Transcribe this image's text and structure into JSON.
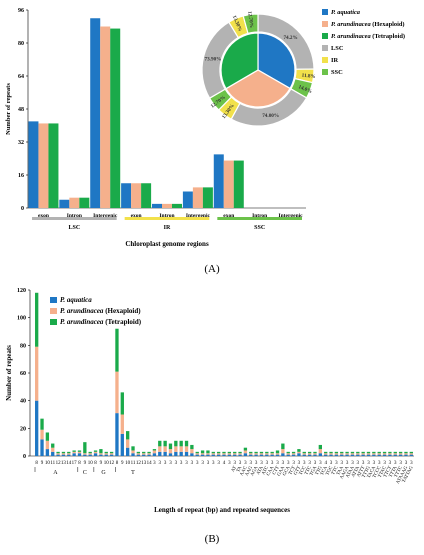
{
  "colors": {
    "aquatica": "#1f77c4",
    "hexaploid": "#f5b08c",
    "tetraploid": "#1aaa4a",
    "lsc": "#b3b3b3",
    "ir": "#f2e14b",
    "ssc": "#6cc24a"
  },
  "figure_a_label": "(A)",
  "figure_b_label": "(B)",
  "chart_data": [
    {
      "type": "bar",
      "ylabel": "Number of repeats",
      "xlabel": "Chloroplast genome regions",
      "ylim": [
        0,
        96
      ],
      "yticks": [
        "0",
        "16",
        "32",
        "48",
        "64",
        "80",
        "96"
      ],
      "categories": [
        "exon",
        "Intron",
        "Intergenic",
        "exon",
        "Intron",
        "Intergenic",
        "exon",
        "Intron",
        "Intergenic"
      ],
      "groups": [
        {
          "label": "LSC",
          "color": "#b3b3b3"
        },
        {
          "label": "IR",
          "color": "#f2e14b"
        },
        {
          "label": "SSC",
          "color": "#6cc24a"
        }
      ],
      "series": [
        {
          "name": "P. aquatica",
          "values": [
            42,
            4,
            92,
            12,
            2,
            8,
            26,
            0,
            0
          ]
        },
        {
          "name": "P. arundinacea (Hexaploid)",
          "values": [
            41,
            5,
            88,
            12,
            2,
            10,
            23,
            0,
            0
          ]
        },
        {
          "name": "P. arundinacea (Tetraploid)",
          "values": [
            41,
            5,
            87,
            12,
            2,
            10,
            23,
            0,
            0
          ]
        }
      ],
      "legend": [
        "P. aquatica",
        "P. arundinacea (Hexaploid)",
        "P. arundinacea (Tetraploid)",
        "LSC",
        "IR",
        "SSC"
      ],
      "legend_position": "top-right"
    },
    {
      "type": "pie",
      "inner_series": [
        {
          "name": "P. aquatica",
          "share": 0.333
        },
        {
          "name": "P. arundinacea (Hexaploid)",
          "share": 0.333
        },
        {
          "name": "P. arundinacea (Tetraploid)",
          "share": 0.334
        }
      ],
      "ring": [
        {
          "label": "74.2%",
          "region": "LSC",
          "value": 74.2
        },
        {
          "label": "11.8%",
          "region": "IR",
          "value": 11.8
        },
        {
          "label": "14.0%",
          "region": "SSC",
          "value": 14.0
        },
        {
          "label": "74.00%",
          "region": "LSC",
          "value": 74.0
        },
        {
          "label": "13.30%",
          "region": "IR",
          "value": 13.3
        },
        {
          "label": "12.70%",
          "region": "SSC",
          "value": 12.7
        },
        {
          "label": "73.90%",
          "region": "LSC",
          "value": 73.9
        },
        {
          "label": "13.30%",
          "region": "IR",
          "value": 13.3
        },
        {
          "label": "12.70%",
          "region": "SSC",
          "value": 12.7
        }
      ]
    },
    {
      "type": "bar",
      "stacked": true,
      "ylabel": "Number of repeats",
      "xlabel": "Length of repeat (bp) and repeated sequences",
      "ylim": [
        0,
        120
      ],
      "yticks": [
        "0",
        "20",
        "40",
        "60",
        "80",
        "100",
        "120"
      ],
      "categories": [
        "8",
        "9",
        "10",
        "11",
        "12",
        "13",
        "14",
        "17",
        "8",
        "9",
        "10",
        "8",
        "9",
        "10",
        "12",
        "8",
        "9",
        "10",
        "11",
        "12",
        "13",
        "14",
        "3",
        "3",
        "3",
        "3",
        "3",
        "3",
        "3",
        "3",
        "3",
        "3",
        "3",
        "3",
        "3",
        "4",
        "3",
        "3",
        "3",
        "3",
        "3",
        "3",
        "3",
        "3",
        "3",
        "3",
        "3",
        "3",
        "3",
        "3",
        "3",
        "3",
        "3",
        "3",
        "4",
        "3",
        "3",
        "3",
        "3",
        "3",
        "3",
        "3",
        "3",
        "3",
        "3",
        "3",
        "3",
        "3",
        "3",
        "3",
        "3"
      ],
      "tick_labels": [
        "8",
        "9",
        "10",
        "11",
        "12",
        "13",
        "14",
        "17",
        "8",
        "9",
        "10",
        "8",
        "9",
        "10",
        "12",
        "8",
        "9",
        "10",
        "11",
        "12",
        "13",
        "14",
        "3",
        "3",
        "3",
        "3",
        "3",
        "3",
        "3",
        "3",
        "3",
        "3",
        "3",
        "3",
        "3",
        "4",
        "3",
        "3",
        "3",
        "3",
        "3",
        "3",
        "3",
        "3",
        "3",
        "3",
        "3",
        "3",
        "3",
        "3",
        "3",
        "3",
        "3",
        "3",
        "4",
        "3",
        "3",
        "3",
        "3",
        "3",
        "3",
        "3",
        "3",
        "3",
        "3",
        "3",
        "3",
        "3",
        "3",
        "3",
        "3"
      ],
      "sequences": [
        "AT",
        "TA",
        "AAC",
        "AAG",
        "AGA",
        "ATA",
        "ATC",
        "CAA",
        "CTT",
        "GAA",
        "GCA",
        "TCT",
        "GTT",
        "TCC",
        "TTC",
        "TGA",
        "TTG",
        "TCA",
        "TGC",
        "TTC",
        "TAA",
        "AAGA",
        "ATAA",
        "ATTA",
        "ATTT",
        "TTTG",
        "TACA",
        "TCCC",
        "TTAC",
        "TTCT",
        "TTTA",
        "TTTC",
        "ATAAAG",
        "TATTAG"
      ],
      "group_labels": [
        {
          "label": "A",
          "from": 0,
          "to": 7
        },
        {
          "label": "C",
          "from": 8,
          "to": 10
        },
        {
          "label": "G",
          "from": 11,
          "to": 14
        },
        {
          "label": "T",
          "from": 15,
          "to": 21
        }
      ],
      "series": [
        {
          "name": "P. aquatica",
          "values": [
            40,
            12,
            5,
            3,
            1,
            1,
            1,
            2,
            2,
            1,
            1,
            2,
            1,
            1,
            1,
            31,
            16,
            6,
            2,
            1,
            1,
            1,
            2,
            3,
            3,
            2,
            3,
            3,
            3,
            2,
            1,
            1,
            1,
            1,
            1,
            1,
            1,
            1,
            1,
            2,
            1,
            1,
            1,
            1,
            1,
            1,
            2,
            1,
            1,
            2,
            1,
            1,
            1,
            2,
            1,
            1,
            1,
            1,
            1,
            1,
            1,
            1,
            1,
            1,
            1,
            1,
            1,
            1,
            1,
            1,
            1
          ]
        },
        {
          "name": "P. arundinacea (Hexaploid)",
          "values": [
            39,
            7,
            6,
            3,
            1,
            1,
            1,
            1,
            1,
            1,
            1,
            1,
            1,
            1,
            1,
            30,
            14,
            6,
            2,
            1,
            1,
            1,
            2,
            4,
            4,
            3,
            4,
            4,
            4,
            3,
            1,
            1,
            1,
            1,
            1,
            1,
            1,
            1,
            1,
            2,
            1,
            1,
            1,
            1,
            1,
            1,
            3,
            1,
            1,
            1,
            1,
            1,
            1,
            3,
            1,
            1,
            1,
            1,
            1,
            1,
            1,
            1,
            1,
            1,
            1,
            1,
            1,
            1,
            1,
            1,
            1
          ]
        },
        {
          "name": "P. arundinacea (Tetraploid)",
          "values": [
            39,
            8,
            6,
            3,
            1,
            1,
            1,
            1,
            1,
            8,
            1,
            1,
            3,
            1,
            1,
            31,
            16,
            6,
            3,
            1,
            1,
            1,
            1,
            4,
            4,
            4,
            4,
            4,
            4,
            3,
            1,
            2,
            2,
            1,
            1,
            1,
            1,
            1,
            1,
            2,
            1,
            1,
            1,
            1,
            1,
            2,
            4,
            1,
            1,
            2,
            1,
            1,
            1,
            3,
            1,
            1,
            1,
            1,
            1,
            1,
            1,
            1,
            1,
            1,
            1,
            1,
            1,
            1,
            1,
            1,
            1
          ]
        }
      ],
      "legend_position": "top-left"
    }
  ]
}
